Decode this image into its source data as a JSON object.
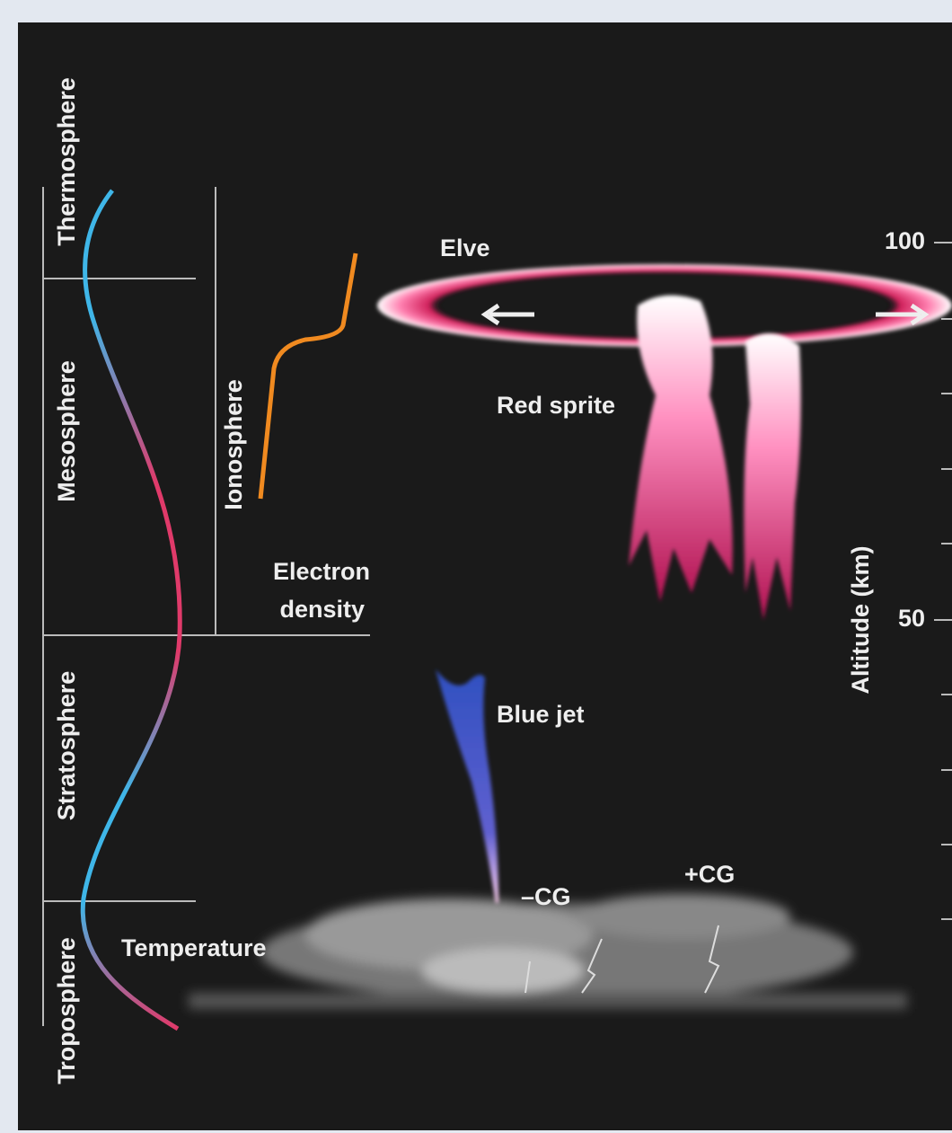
{
  "layers": [
    "Thermosphere",
    "Mesosphere",
    "Stratosphere",
    "Troposphere"
  ],
  "ionosphere": "Ionosphere",
  "curves": {
    "temperature": "Temperature",
    "electron_density": [
      "Electron",
      "density"
    ]
  },
  "phenomena": {
    "elve": "Elve",
    "red_sprite": "Red sprite",
    "blue_jet": "Blue jet",
    "negative_cg": "–CG",
    "positive_cg": "+CG"
  },
  "altitude_axis": {
    "title": "Altitude (km)",
    "tick_labels": [
      "100",
      "50"
    ]
  }
}
